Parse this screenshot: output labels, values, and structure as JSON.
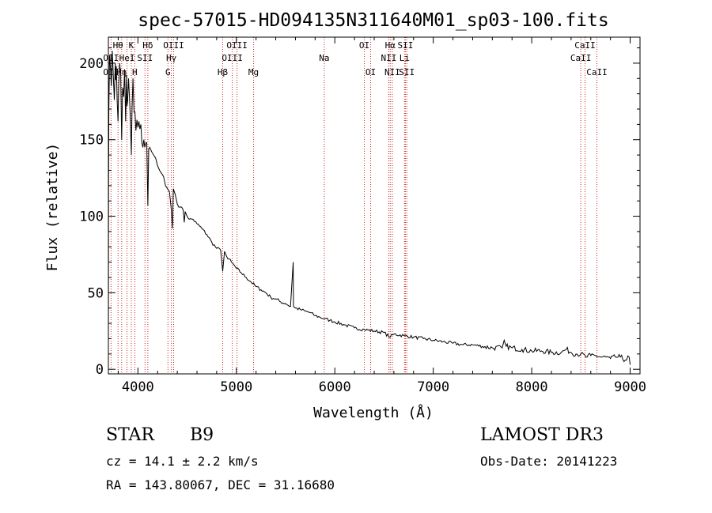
{
  "chart_data": {
    "type": "line",
    "title": "spec-57015-HD094135N311640M01_sp03-100.fits",
    "xlabel": "Wavelength (Å)",
    "ylabel": "Flux (relative)",
    "xlim": [
      3700,
      9100
    ],
    "ylim": [
      -3,
      217
    ],
    "xticks": [
      4000,
      5000,
      6000,
      7000,
      8000,
      9000
    ],
    "yticks": [
      0,
      50,
      100,
      150,
      200
    ],
    "xtick_labels": [
      "4000",
      "5000",
      "6000",
      "7000",
      "8000",
      "9000"
    ],
    "ytick_labels": [
      "0",
      "50",
      "100",
      "150",
      "200"
    ],
    "series": [
      {
        "name": "spectrum",
        "x": [
          3700,
          3702,
          3705,
          3712,
          3720,
          3730,
          3740,
          3750,
          3760,
          3770,
          3775,
          3780,
          3790,
          3798,
          3805,
          3815,
          3825,
          3835,
          3845,
          3855,
          3865,
          3875,
          3885,
          3889,
          3895,
          3905,
          3915,
          3925,
          3933,
          3940,
          3950,
          3960,
          3970,
          3980,
          3990,
          4000,
          4010,
          4020,
          4030,
          4040,
          4050,
          4060,
          4070,
          4080,
          4090,
          4101,
          4110,
          4120,
          4140,
          4160,
          4180,
          4200,
          4220,
          4240,
          4260,
          4280,
          4300,
          4320,
          4340,
          4350,
          4360,
          4380,
          4400,
          4430,
          4460,
          4471,
          4480,
          4520,
          4560,
          4600,
          4650,
          4700,
          4750,
          4800,
          4840,
          4861,
          4880,
          4900,
          4950,
          5000,
          5050,
          5100,
          5150,
          5200,
          5250,
          5300,
          5350,
          5400,
          5450,
          5500,
          5550,
          5577,
          5580,
          5600,
          5650,
          5700,
          5750,
          5800,
          5850,
          5900,
          5950,
          6000,
          6100,
          6200,
          6300,
          6400,
          6500,
          6563,
          6600,
          6700,
          6800,
          6900,
          7000,
          7100,
          7200,
          7300,
          7400,
          7500,
          7600,
          7700,
          7720,
          7740,
          7800,
          7900,
          8000,
          8100,
          8200,
          8300,
          8350,
          8400,
          8450,
          8500,
          8550,
          8600,
          8650,
          8700,
          8750,
          8800,
          8850,
          8900,
          8950,
          8990,
          9000
        ],
        "y": [
          5,
          118,
          170,
          205,
          198,
          185,
          208,
          192,
          176,
          200,
          189,
          198,
          174,
          162,
          186,
          200,
          192,
          150,
          184,
          178,
          196,
          162,
          192,
          172,
          175,
          190,
          176,
          160,
          140,
          170,
          190,
          168,
          168,
          156,
          163,
          158,
          162,
          157,
          160,
          148,
          145,
          150,
          145,
          148,
          148,
          107,
          144,
          145,
          142,
          140,
          138,
          133,
          130,
          128,
          126,
          120,
          118,
          116,
          104,
          92,
          118,
          114,
          108,
          106,
          104,
          96,
          103,
          98,
          98,
          95,
          92,
          88,
          83,
          79,
          78,
          64,
          77,
          74,
          70,
          66,
          63,
          60,
          57,
          54,
          52,
          50,
          47,
          46,
          44,
          43,
          41,
          70,
          41,
          40,
          39,
          38,
          37,
          35,
          34,
          33,
          32,
          31,
          29,
          27,
          26,
          25,
          24,
          21,
          23,
          22,
          21,
          20,
          19,
          18,
          17,
          16,
          16,
          15,
          14,
          14,
          19,
          15,
          14,
          13,
          12,
          12,
          11,
          11,
          13,
          11,
          10,
          10,
          8,
          9,
          9,
          8,
          8,
          7,
          8,
          8,
          6,
          8,
          3
        ]
      }
    ],
    "line_markers": [
      {
        "label": "Hθ",
        "x": 3798,
        "row": 0
      },
      {
        "label": "OII",
        "x": 3727,
        "row": 1
      },
      {
        "label": "OII",
        "x": 3727,
        "row": 2
      },
      {
        "label": "Hη",
        "x": 3835,
        "row": 2
      },
      {
        "label": "HeI",
        "x": 3889,
        "row": 1
      },
      {
        "label": "K",
        "x": 3933,
        "row": 0
      },
      {
        "label": "H",
        "x": 3968,
        "row": 2
      },
      {
        "label": "Hδ",
        "x": 4101,
        "row": 0
      },
      {
        "label": "SII",
        "x": 4072,
        "row": 1
      },
      {
        "label": "OIII",
        "x": 4363,
        "row": 0
      },
      {
        "label": "Hγ",
        "x": 4340,
        "row": 1
      },
      {
        "label": "G",
        "x": 4305,
        "row": 2
      },
      {
        "label": "Hβ",
        "x": 4861,
        "row": 2
      },
      {
        "label": "OIII",
        "x": 5007,
        "row": 0
      },
      {
        "label": "OIII",
        "x": 4959,
        "row": 1
      },
      {
        "label": "Mg",
        "x": 5175,
        "row": 2
      },
      {
        "label": "Na",
        "x": 5893,
        "row": 1
      },
      {
        "label": "OI",
        "x": 6300,
        "row": 0
      },
      {
        "label": "OI",
        "x": 6364,
        "row": 2
      },
      {
        "label": "Hα",
        "x": 6563,
        "row": 0
      },
      {
        "label": "NII",
        "x": 6548,
        "row": 1
      },
      {
        "label": "NII",
        "x": 6584,
        "row": 2
      },
      {
        "label": "SII",
        "x": 6717,
        "row": 0
      },
      {
        "label": "Li",
        "x": 6708,
        "row": 1
      },
      {
        "label": "SII",
        "x": 6731,
        "row": 2
      },
      {
        "label": "CaII",
        "x": 8542,
        "row": 0
      },
      {
        "label": "CaII",
        "x": 8498,
        "row": 1
      },
      {
        "label": "CaII",
        "x": 8662,
        "row": 2
      }
    ]
  },
  "info": {
    "class": "STAR",
    "subclass": "B9",
    "survey": "LAMOST DR3",
    "cz": "cz = 14.1 ± 2.2 km/s",
    "obs_date": "Obs-Date: 20141223",
    "coords": "RA = 143.80067, DEC =  31.16680"
  },
  "colors": {
    "axis": "#000000",
    "spectrum": "#000000",
    "marker_line": "#cc2222"
  }
}
